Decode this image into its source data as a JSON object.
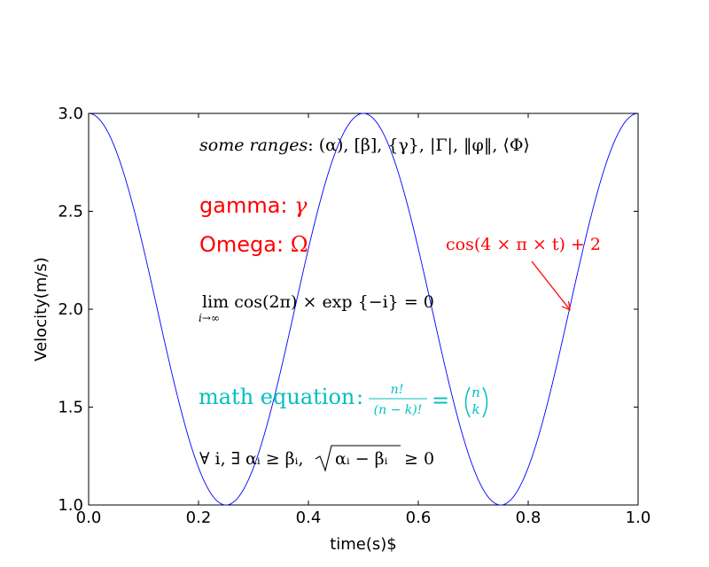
{
  "chart_data": {
    "type": "line",
    "xlabel": "time(s)$",
    "ylabel": "Velocity(m/s)",
    "xlim": [
      0.0,
      1.0
    ],
    "ylim": [
      1.0,
      3.0
    ],
    "xticks": [
      "0.0",
      "0.2",
      "0.4",
      "0.6",
      "0.8",
      "1.0"
    ],
    "yticks": [
      "1.0",
      "1.5",
      "2.0",
      "2.5",
      "3.0"
    ],
    "grid": false,
    "series": [
      {
        "formula": "cos(4*pi*t)+2",
        "color": "#0000ff",
        "x_range": [
          0.0,
          1.0
        ]
      }
    ],
    "annotations": {
      "ranges_prefix": "some ranges",
      "ranges_body": ": (α), [β], {γ}, |Γ|, ‖φ‖, ⟨Φ⟩",
      "gamma_prefix": "gamma: ",
      "gamma_symbol": "γ",
      "omega_prefix": "Omega: ",
      "omega_symbol": "Ω",
      "limit_main": "lim cos(2π) × exp {−i} = 0",
      "limit_sub": "i→∞",
      "math_prefix": "math equation",
      "math_colon": ":",
      "frac_num": "n!",
      "frac_den": "(n − k)!",
      "binom_eq": "=",
      "binom_n": "n",
      "binom_k": "k",
      "forall_text": "∀ i, ∃ αᵢ ≥ βᵢ,",
      "sqrt_body": "αᵢ − βᵢ",
      "sqrt_tail": "≥ 0",
      "cos_label": "cos(4 × π × t) + 2",
      "arrow_point": [
        0.875,
        2.0
      ]
    },
    "colors": {
      "red": "#ff0000",
      "cyan": "#00bfbf",
      "black": "#000000"
    }
  }
}
